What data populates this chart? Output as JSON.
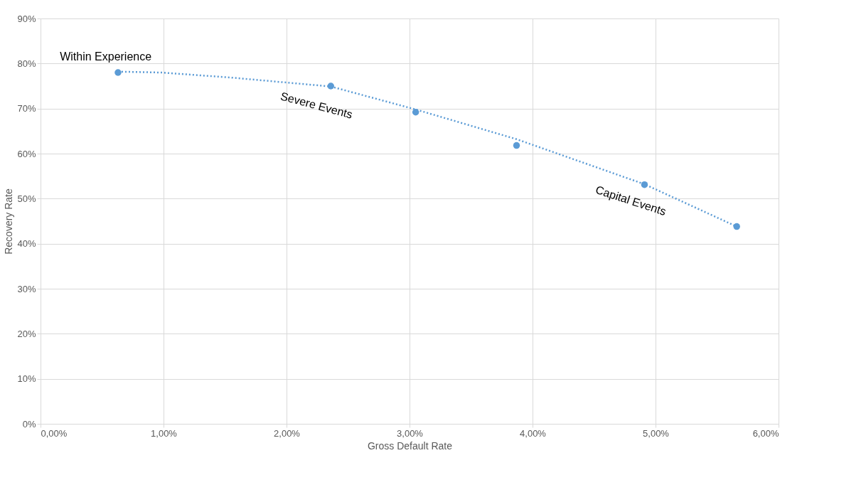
{
  "chart_data": {
    "type": "scatter",
    "xlabel": "Gross Default Rate",
    "ylabel": "Recovery Rate",
    "x": [
      0.63,
      2.36,
      3.05,
      3.87,
      4.91,
      5.66
    ],
    "series": [
      {
        "color": "#5b9bd5",
        "marker": "circle",
        "values": [
          78.0,
          75.0,
          69.2,
          61.8,
          53.1,
          43.8
        ]
      },
      {
        "type": "line",
        "color": "#5b9bd5",
        "marker": "none",
        "line_style": "dotted",
        "x": [
          0.63,
          0.98,
          1.54,
          2.36,
          3.05,
          3.87,
          4.91,
          5.66
        ],
        "values": [
          78.2,
          78.0,
          76.9,
          74.9,
          69.8,
          63.2,
          53.2,
          43.8
        ]
      }
    ],
    "xlim": [
      0,
      6
    ],
    "ylim": [
      0,
      90
    ],
    "xticks": [
      {
        "value": 0,
        "label": "0,00%"
      },
      {
        "value": 1,
        "label": "1,00%"
      },
      {
        "value": 2,
        "label": "2,00%"
      },
      {
        "value": 3,
        "label": "3,00%"
      },
      {
        "value": 4,
        "label": "4,00%"
      },
      {
        "value": 5,
        "label": "5,00%"
      },
      {
        "value": 6,
        "label": "6,00%"
      }
    ],
    "yticks": [
      {
        "value": 0,
        "label": "0%"
      },
      {
        "value": 10,
        "label": "10%"
      },
      {
        "value": 20,
        "label": "20%"
      },
      {
        "value": 30,
        "label": "30%"
      },
      {
        "value": 40,
        "label": "40%"
      },
      {
        "value": 50,
        "label": "50%"
      },
      {
        "value": 60,
        "label": "60%"
      },
      {
        "value": 70,
        "label": "70%"
      },
      {
        "value": 80,
        "label": "80%"
      },
      {
        "value": 90,
        "label": "90%"
      }
    ],
    "annotations": [
      "Within Experience",
      "Severe Events",
      "Capital Events"
    ],
    "grid": true
  }
}
